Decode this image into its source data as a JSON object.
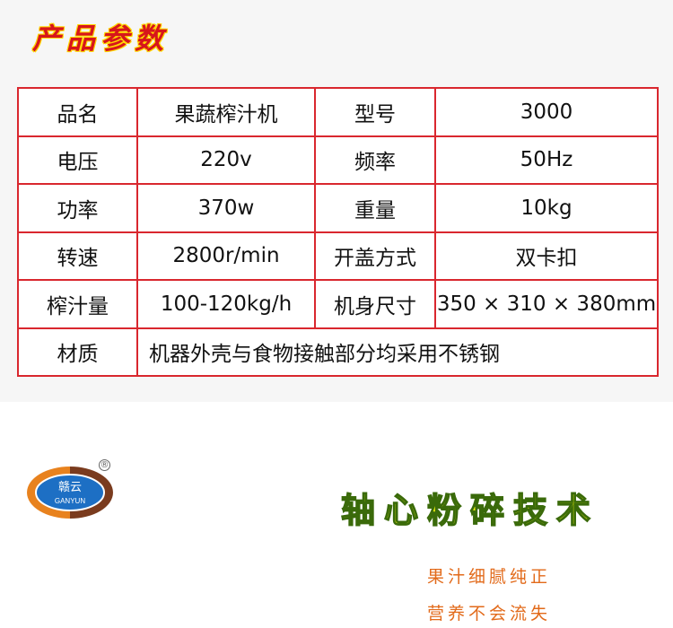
{
  "title": "产品参数",
  "table": [
    [
      "品名",
      "果蔬榨汁机",
      "型号",
      "3000"
    ],
    [
      "电压",
      "220v",
      "频率",
      "50Hz"
    ],
    [
      "功率",
      "370w",
      "重量",
      "10kg"
    ],
    [
      "转速",
      "2800r/min",
      "开盖方式",
      "双卡扣"
    ],
    [
      "榨汁量",
      "100-120kg/h",
      "机身尺寸",
      "350 × 310 × 380mm"
    ]
  ],
  "material": {
    "label": "材质",
    "value": "机器外壳与食物接触部分均采用不锈钢"
  },
  "logo": {
    "cn": "赣云",
    "en": "GANYUN",
    "reg": "®"
  },
  "tech": "轴心粉碎技术",
  "slogans": [
    "果汁细腻纯正",
    "营养不会流失"
  ],
  "colors": {
    "border": "#d9272e",
    "title": "#d7161b",
    "tech": "#eef40c",
    "slogan": "#e26a1a"
  }
}
